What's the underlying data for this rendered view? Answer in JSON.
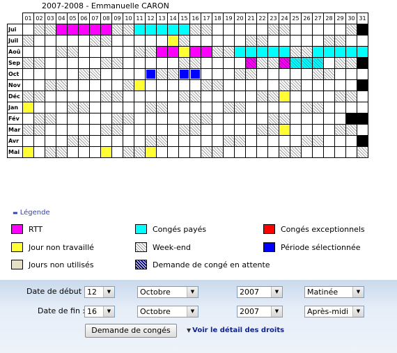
{
  "title": "2007-2008 - Emmanuelle CARON",
  "days": [
    "01",
    "02",
    "03",
    "04",
    "05",
    "06",
    "07",
    "08",
    "09",
    "10",
    "11",
    "12",
    "13",
    "14",
    "15",
    "16",
    "17",
    "18",
    "19",
    "20",
    "21",
    "22",
    "23",
    "24",
    "25",
    "26",
    "27",
    "28",
    "29",
    "30",
    "31"
  ],
  "months": [
    {
      "label": "Jui",
      "cells": {
        "2": "we",
        "3": "we",
        "4": "rtt",
        "5": "rtt",
        "6": "rtt",
        "7": "rtt",
        "8": "rtt",
        "9": "we",
        "10": "we",
        "11": "cp",
        "12": "cp",
        "13": "cp",
        "14": "cp",
        "15": "cp",
        "16": "we",
        "17": "we",
        "23": "we",
        "24": "we",
        "30": "we",
        "31": "blk"
      }
    },
    {
      "label": "Juil",
      "cells": {
        "1": "we",
        "7": "we",
        "8": "we",
        "14": "jnt",
        "15": "we",
        "21": "we",
        "22": "we",
        "28": "we",
        "29": "we"
      }
    },
    {
      "label": "Aoû",
      "cells": {
        "4": "we",
        "5": "we",
        "11": "we",
        "12": "we",
        "13": "rtt",
        "14": "rtt",
        "15": "jnt",
        "16": "rtt",
        "17": "rtt",
        "18": "we",
        "19": "we",
        "20": "cp",
        "21": "cp",
        "22": "cp",
        "23": "cp",
        "24": "cp",
        "25": "we",
        "26": "we",
        "27": "cp",
        "28": "cp",
        "29": "cp",
        "30": "cp",
        "31": "cp"
      }
    },
    {
      "label": "Sep",
      "cells": {
        "1": "we",
        "2": "we",
        "8": "we",
        "9": "we",
        "15": "we",
        "16": "we",
        "21": "pendrtt",
        "22": "we",
        "23": "we",
        "24": "pendrtt",
        "25": "pendcp",
        "26": "pendcp",
        "27": "pendcp",
        "29": "we",
        "30": "we",
        "31": "blk"
      }
    },
    {
      "label": "Oct",
      "cells": {
        "6": "we",
        "7": "we",
        "12": "sel",
        "13": "we",
        "14": "we",
        "15": "sel",
        "16": "sel",
        "20": "we",
        "21": "we",
        "27": "we",
        "28": "we"
      }
    },
    {
      "label": "Nov",
      "cells": {
        "3": "we",
        "4": "we",
        "10": "we",
        "11": "jnt",
        "17": "we",
        "18": "we",
        "24": "we",
        "25": "we",
        "31": "blk"
      }
    },
    {
      "label": "Déc",
      "cells": {
        "1": "we",
        "2": "we",
        "8": "we",
        "9": "we",
        "15": "we",
        "16": "we",
        "22": "we",
        "23": "we",
        "24": "jnt",
        "29": "we",
        "30": "we"
      }
    },
    {
      "label": "Jan",
      "cells": {
        "1": "jnt",
        "5": "we",
        "6": "we",
        "12": "we",
        "13": "we",
        "19": "we",
        "20": "we",
        "26": "we",
        "27": "we"
      }
    },
    {
      "label": "Fév",
      "cells": {
        "2": "we",
        "3": "we",
        "9": "we",
        "10": "we",
        "16": "we",
        "17": "we",
        "23": "we",
        "24": "we",
        "30": "blk",
        "31": "blk"
      }
    },
    {
      "label": "Mar",
      "cells": {
        "1": "we",
        "2": "we",
        "8": "we",
        "9": "we",
        "15": "we",
        "16": "we",
        "22": "we",
        "23": "we",
        "24": "jnt",
        "29": "we",
        "30": "we"
      }
    },
    {
      "label": "Avr",
      "cells": {
        "5": "we",
        "6": "we",
        "12": "we",
        "13": "we",
        "19": "we",
        "20": "we",
        "26": "we",
        "27": "we",
        "31": "blk"
      }
    },
    {
      "label": "Mai",
      "cells": {
        "1": "jnt",
        "3": "we",
        "4": "we",
        "8": "jnt",
        "10": "we",
        "11": "we",
        "12": "jnt",
        "17": "we",
        "18": "we",
        "24": "we",
        "25": "we",
        "31": "we"
      }
    }
  ],
  "legend": {
    "toggle": "Légende",
    "items": {
      "rtt": "RTT",
      "cp": "Congés payés",
      "ex": "Congés exceptionnels",
      "jnt": "Jour non travaillé",
      "we": "Week-end",
      "sel": "Période sélectionnée",
      "un": "Jours non utilisés",
      "pend": "Demande de congé en attente"
    }
  },
  "form": {
    "start_label": "Date de début :",
    "end_label": "Date de fin :",
    "start": {
      "day": "12",
      "month": "Octobre",
      "year": "2007",
      "period": "Matinée"
    },
    "end": {
      "day": "16",
      "month": "Octobre",
      "year": "2007",
      "period": "Après-midi"
    },
    "submit": "Demande de congés",
    "rights": "Voir le détail des droits"
  },
  "colors": {
    "rtt": "#ff00ff",
    "cp": "#00ffff",
    "ex": "#ff0000",
    "jnt": "#ffff33",
    "sel": "#0000ff",
    "un": "#e5dfc6",
    "panel": "#dbe6f3"
  }
}
